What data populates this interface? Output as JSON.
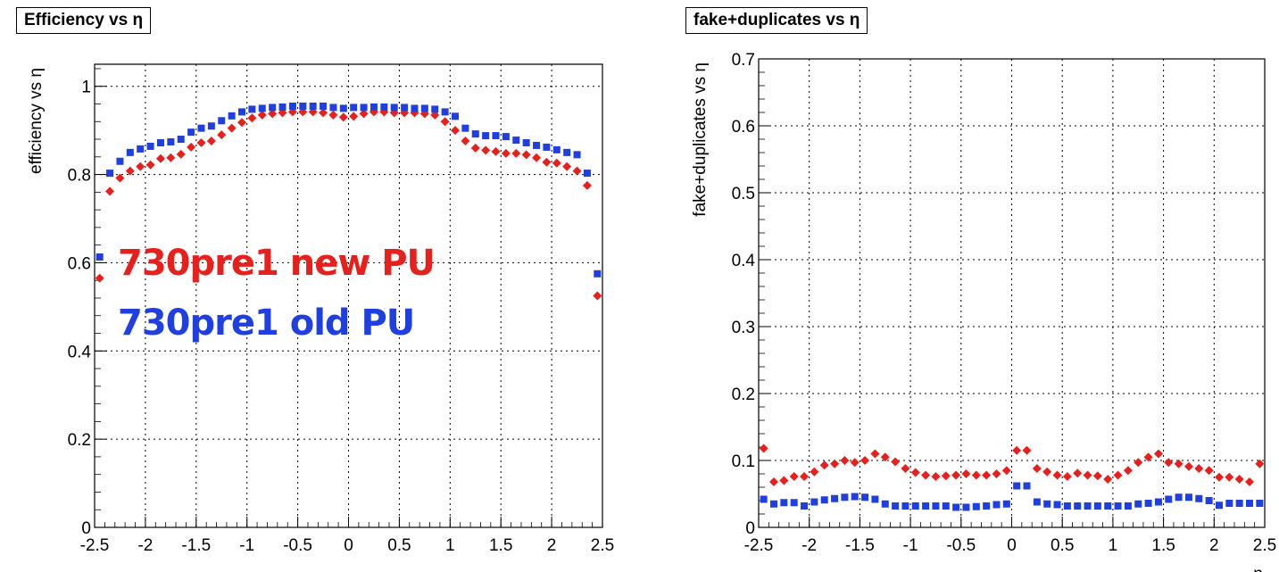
{
  "charts": [
    {
      "title": "Efficiency vs η",
      "ylabel": "efficiency vs η",
      "xlabel": "",
      "annotations": [
        "730pre1 new PU",
        "730pre1 old PU"
      ],
      "ytick_labels": [
        "0",
        "0.2",
        "0.4",
        "0.6",
        "0.8",
        "1"
      ],
      "xtick_labels": [
        "-2.5",
        "-2",
        "-1.5",
        "-1",
        "-0.5",
        "0",
        "0.5",
        "1",
        "1.5",
        "2",
        "2.5"
      ]
    },
    {
      "title": "fake+duplicates vs η",
      "ylabel": "fake+duplicates vs η",
      "xlabel": "η",
      "ytick_labels": [
        "0",
        "0.1",
        "0.2",
        "0.3",
        "0.4",
        "0.5",
        "0.6",
        "0.7"
      ],
      "xtick_labels": [
        "-2.5",
        "-2",
        "-1.5",
        "-1",
        "-0.5",
        "0",
        "0.5",
        "1",
        "1.5",
        "2",
        "2.5"
      ]
    }
  ],
  "colors": {
    "new_pu": "#e8201c",
    "old_pu": "#1f3fe0",
    "grid": "#000000"
  },
  "chart_data": [
    {
      "type": "scatter",
      "title": "Efficiency vs η",
      "ylabel": "efficiency vs η",
      "xlabel": "",
      "xlim": [
        -2.5,
        2.5
      ],
      "ylim": [
        0,
        1.05
      ],
      "grid": true,
      "x": [
        -2.45,
        -2.35,
        -2.25,
        -2.15,
        -2.05,
        -1.95,
        -1.85,
        -1.75,
        -1.65,
        -1.55,
        -1.45,
        -1.35,
        -1.25,
        -1.15,
        -1.05,
        -0.95,
        -0.85,
        -0.75,
        -0.65,
        -0.55,
        -0.45,
        -0.35,
        -0.25,
        -0.15,
        -0.05,
        0.05,
        0.15,
        0.25,
        0.35,
        0.45,
        0.55,
        0.65,
        0.75,
        0.85,
        0.95,
        1.05,
        1.15,
        1.25,
        1.35,
        1.45,
        1.55,
        1.65,
        1.75,
        1.85,
        1.95,
        2.05,
        2.15,
        2.25,
        2.35,
        2.45
      ],
      "series": [
        {
          "name": "730pre1 new PU",
          "color": "#e8201c",
          "values": [
            0.565,
            0.762,
            0.792,
            0.808,
            0.818,
            0.822,
            0.836,
            0.838,
            0.846,
            0.862,
            0.872,
            0.876,
            0.89,
            0.905,
            0.918,
            0.928,
            0.935,
            0.938,
            0.94,
            0.942,
            0.942,
            0.942,
            0.94,
            0.935,
            0.93,
            0.932,
            0.938,
            0.942,
            0.942,
            0.94,
            0.94,
            0.94,
            0.938,
            0.935,
            0.92,
            0.9,
            0.876,
            0.86,
            0.855,
            0.852,
            0.848,
            0.848,
            0.845,
            0.838,
            0.828,
            0.826,
            0.818,
            0.808,
            0.775,
            0.525
          ]
        },
        {
          "name": "730pre1 old PU",
          "color": "#1f3fe0",
          "values": [
            0.613,
            0.803,
            0.83,
            0.85,
            0.858,
            0.864,
            0.872,
            0.874,
            0.88,
            0.896,
            0.905,
            0.91,
            0.922,
            0.933,
            0.942,
            0.948,
            0.95,
            0.952,
            0.953,
            0.955,
            0.955,
            0.955,
            0.955,
            0.952,
            0.95,
            0.952,
            0.952,
            0.953,
            0.953,
            0.952,
            0.952,
            0.95,
            0.95,
            0.948,
            0.942,
            0.932,
            0.905,
            0.892,
            0.888,
            0.888,
            0.886,
            0.878,
            0.872,
            0.866,
            0.862,
            0.856,
            0.85,
            0.845,
            0.803,
            0.575
          ]
        }
      ]
    },
    {
      "type": "scatter",
      "title": "fake+duplicates vs η",
      "ylabel": "fake+duplicates vs η",
      "xlabel": "η",
      "xlim": [
        -2.5,
        2.5
      ],
      "ylim": [
        0,
        0.7
      ],
      "grid": true,
      "x": [
        -2.45,
        -2.35,
        -2.25,
        -2.15,
        -2.05,
        -1.95,
        -1.85,
        -1.75,
        -1.65,
        -1.55,
        -1.45,
        -1.35,
        -1.25,
        -1.15,
        -1.05,
        -0.95,
        -0.85,
        -0.75,
        -0.65,
        -0.55,
        -0.45,
        -0.35,
        -0.25,
        -0.15,
        -0.05,
        0.05,
        0.15,
        0.25,
        0.35,
        0.45,
        0.55,
        0.65,
        0.75,
        0.85,
        0.95,
        1.05,
        1.15,
        1.25,
        1.35,
        1.45,
        1.55,
        1.65,
        1.75,
        1.85,
        1.95,
        2.05,
        2.15,
        2.25,
        2.35,
        2.45
      ],
      "series": [
        {
          "color": "#e8201c",
          "values": [
            0.118,
            0.068,
            0.07,
            0.076,
            0.076,
            0.083,
            0.093,
            0.095,
            0.1,
            0.097,
            0.1,
            0.11,
            0.105,
            0.098,
            0.088,
            0.082,
            0.078,
            0.076,
            0.077,
            0.078,
            0.08,
            0.078,
            0.078,
            0.08,
            0.085,
            0.115,
            0.115,
            0.088,
            0.083,
            0.078,
            0.076,
            0.081,
            0.078,
            0.077,
            0.072,
            0.078,
            0.085,
            0.097,
            0.105,
            0.11,
            0.097,
            0.095,
            0.091,
            0.088,
            0.085,
            0.075,
            0.075,
            0.072,
            0.068,
            0.095
          ]
        },
        {
          "color": "#1f3fe0",
          "values": [
            0.042,
            0.035,
            0.037,
            0.037,
            0.032,
            0.038,
            0.041,
            0.043,
            0.045,
            0.046,
            0.045,
            0.042,
            0.035,
            0.032,
            0.032,
            0.032,
            0.032,
            0.032,
            0.032,
            0.03,
            0.03,
            0.031,
            0.032,
            0.034,
            0.035,
            0.062,
            0.062,
            0.038,
            0.035,
            0.034,
            0.032,
            0.032,
            0.032,
            0.032,
            0.032,
            0.032,
            0.032,
            0.035,
            0.036,
            0.038,
            0.042,
            0.045,
            0.045,
            0.043,
            0.04,
            0.033,
            0.036,
            0.036,
            0.036,
            0.036
          ]
        }
      ]
    }
  ]
}
